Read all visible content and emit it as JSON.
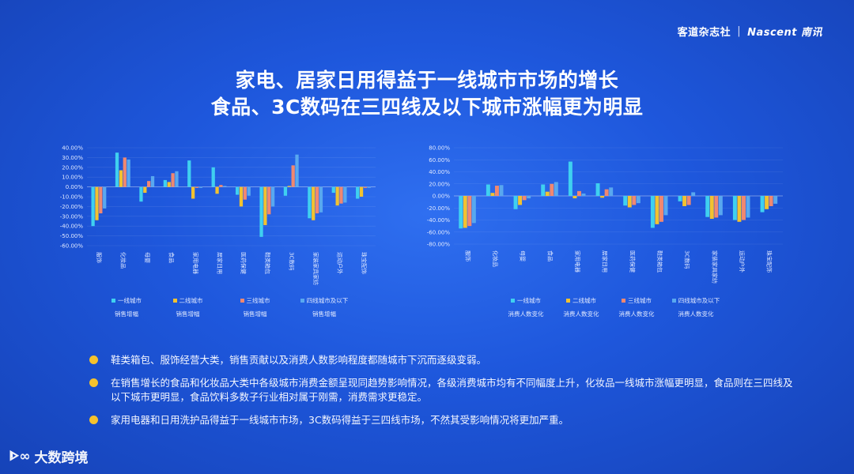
{
  "brand": {
    "left": "客道杂志社",
    "separator": "|",
    "right": "Nascent 南讯"
  },
  "titles": {
    "line1": "家电、居家日用得益于一线城市市场的增长",
    "line2": "食品、3C数码在三四线及以下城市涨幅更为明显"
  },
  "colors": {
    "tier1": "#3fd0f0",
    "tier2": "#f2c230",
    "tier3": "#f08870",
    "tier4": "#58a8f0"
  },
  "legend_left": [
    {
      "label": "一线城市",
      "sub": "销售增幅"
    },
    {
      "label": "二线城市",
      "sub": "销售增幅"
    },
    {
      "label": "三线城市",
      "sub": "销售增幅"
    },
    {
      "label": "四线城市及以下",
      "sub": "销售增幅"
    }
  ],
  "legend_right": [
    {
      "label": "一线城市",
      "sub": "消费人数变化"
    },
    {
      "label": "二线城市",
      "sub": "消费人数变化"
    },
    {
      "label": "三线城市",
      "sub": "消费人数变化"
    },
    {
      "label": "四线城市及以下",
      "sub": "消费人数变化"
    }
  ],
  "chart_data": [
    {
      "type": "bar",
      "categories": [
        "服饰",
        "化妆品",
        "母婴",
        "食品",
        "家用电器",
        "居家日用",
        "医药保健",
        "鞋类箱包",
        "3C数码",
        "家装家具家纺",
        "运动户外",
        "珠宝配饰"
      ],
      "ylim": [
        -60,
        40
      ],
      "yticks": [
        "40.00%",
        "30.00%",
        "20.00%",
        "10.00%",
        "0.00%",
        "-10.00%",
        "-20.00%",
        "-30.00%",
        "-40.00%",
        "-50.00%",
        "-60.00%"
      ],
      "series": [
        {
          "name": "一线城市销售增幅",
          "values": [
            -40,
            35,
            -15,
            7,
            27,
            20,
            -8,
            -51,
            -9,
            -32,
            -6,
            -12
          ]
        },
        {
          "name": "二线城市销售增幅",
          "values": [
            -34,
            17,
            -6,
            5,
            -12,
            -7,
            -20,
            -39,
            1,
            -34,
            -19,
            -10
          ]
        },
        {
          "name": "三线城市销售增幅",
          "values": [
            -27,
            30,
            6,
            14,
            -1,
            2,
            -13,
            -28,
            22,
            -27,
            -17,
            -1
          ]
        },
        {
          "name": "四线城市及以下销售增幅",
          "values": [
            -22,
            28,
            11,
            16,
            -1,
            1,
            -9,
            -20,
            33,
            -26,
            -16,
            -1
          ]
        }
      ]
    },
    {
      "type": "bar",
      "categories": [
        "服饰",
        "化妆品",
        "母婴",
        "食品",
        "家用电器",
        "居家日用",
        "医药保健",
        "鞋类箱包",
        "3C数码",
        "家装家具家纺",
        "运动户外",
        "珠宝配饰"
      ],
      "ylim": [
        -80,
        80
      ],
      "yticks": [
        "80.00%",
        "60.00%",
        "40.00%",
        "20.00%",
        "0.00%",
        "-20.00%",
        "-40.00%",
        "-60.00%",
        "-80.00%"
      ],
      "series": [
        {
          "name": "一线城市消费人数变化",
          "values": [
            -54,
            19,
            -22,
            19,
            57,
            21,
            -16,
            -53,
            -9,
            -35,
            -40,
            -27
          ]
        },
        {
          "name": "二线城市消费人数变化",
          "values": [
            -53,
            5,
            -15,
            7,
            -4,
            -3,
            -19,
            -47,
            -17,
            -38,
            -43,
            -22
          ]
        },
        {
          "name": "三线城市消费人数变化",
          "values": [
            -50,
            17,
            -7,
            20,
            8,
            11,
            -15,
            -43,
            -15,
            -36,
            -40,
            -17
          ]
        },
        {
          "name": "四线城市及以下消费人数变化",
          "values": [
            -45,
            18,
            -4,
            23,
            4,
            14,
            -12,
            -32,
            6,
            -32,
            -36,
            -13
          ]
        }
      ]
    }
  ],
  "notes": [
    "鞋类箱包、服饰经营大类，销售贡献以及消费人数影响程度都随城市下沉而逐级变弱。",
    "在销售增长的食品和化妆品大类中各级城市消费金额呈现同趋势影响情况，各级消费城市均有不同幅度上升，化妆品一线城市涨幅更明显，食品则在三四线及以下城市更明显，食品饮料多数子行业相对属于刚需，消费需求更稳定。",
    "家用电器和日用洗护品得益于一线城市市场，3C数码得益于三四线市场，不然其受影响情况将更加严重。"
  ],
  "footer": {
    "icon": "ᐈ∞",
    "text": "大数跨境"
  }
}
